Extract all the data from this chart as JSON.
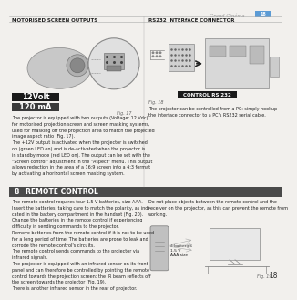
{
  "bg_color": "#f2f0ed",
  "page_num": "18",
  "header_brand": "Grand Cinéma",
  "header_brand_color": "#999999",
  "header_tag_color": "#5b9bd5",
  "left_section_title": "MOTORISED SCREEN OUTPUTS",
  "right_section_title": "RS232 iNTERfACE CONNECTOR",
  "section_title_color": "#222222",
  "label_12v": "12Volt",
  "label_120ma": "120 mA",
  "label_color": "#ffffff",
  "label_bg_12v": "#1a1a1a",
  "label_bg_120ma": "#3a3a3a",
  "fig17": "Fig. 17",
  "fig18": "Fig. 18",
  "fig19": "Fig. 19",
  "control_label": "CONTROL RS 232",
  "control_label_bg": "#1a1a1a",
  "control_label_color": "#ffffff",
  "left_body_text": "The projector is equipped with two outputs (Voltage: 12 Vdc)\nfor motorised projection screen and screen masking systems,\nused for masking off the projection area to match the projected\nimage aspect ratio (Fig. 17).\nThe +12V output is activated when the projector is switched\non (green LED on) and is de-activated when the projector is\nin standby mode (red LED on). The output can be set with the\n\"Screen control\" adjustment in the \"Aspect\" menu. This output\nallows reduction in the area of a 16:9 screen into a 4:3 format\nby activating a horizontal screen masking system.",
  "right_body_text": "The projector can be controlled from a PC: simply hookup\nthe interface connector to a PC's RS232 serial cable.",
  "remote_section_num": "8",
  "remote_section_title": "REMOTE CONTROL",
  "remote_section_bg": "#4a4a4a",
  "remote_section_text_color": "#ffffff",
  "remote_left_text": "The remote control requires four 1.5 V batteries, size AAA.\nInsert the batteries, taking care to match the polarity, as indi-\ncated in the battery compartment in the handset (Fig. 20).\nChange the batteries in the remote control if experiencing\ndifficulty in sending commands to the projector.\nRemove batteries from the remote control if it is not to be used\nfor a long period of time. The batteries are prone to leak and\ncorrode the remote control's circuits.\nThe remote control sends commands to the projector via\ninfrared signals.\nThe projector is equipped with an infrared sensor on its front\npanel and can therefore be controlled by pointing the remote\ncontrol towards the projection screen: the IR beam reflects off\nthe screen towards the projector (Fig. 19).\nThere is another infrared sensor in the rear of projector.",
  "remote_right_text": "Do not place objects between the remote control and the\nreceiver on the projector, as this can prevent the remote from\nworking.",
  "battery_label": "4 batteries\n1.5 V\nAAA size",
  "divider_color": "#aaaaaa",
  "text_color": "#222222",
  "small_text_size": 3.5,
  "section_title_size": 4.0,
  "remote_title_size": 5.5
}
